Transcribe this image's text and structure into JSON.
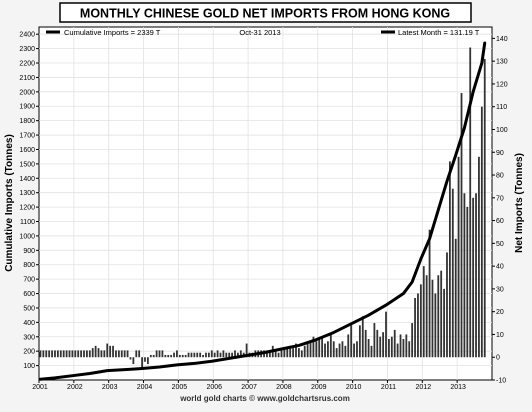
{
  "chart_data": {
    "type": "bar+line",
    "title": "MONTHLY CHINESE GOLD NET IMPORTS FROM HONG KONG",
    "date_label": "Oct-31  2013",
    "footer": "world gold charts © www.goldchartsrus.com",
    "left_axis": {
      "label": "Cumulative Imports (Tonnes)",
      "range": [
        0,
        2450
      ],
      "ticks": [
        "100",
        "200",
        "300",
        "400",
        "500",
        "600",
        "700",
        "800",
        "900",
        "1000",
        "1100",
        "1200",
        "1300",
        "1400",
        "1500",
        "1600",
        "1700",
        "1800",
        "1900",
        "2000",
        "2100",
        "2200",
        "2300",
        "2400"
      ]
    },
    "right_axis": {
      "label": "Net Imports (Tonnes)",
      "range": [
        -10,
        145
      ],
      "ticks": [
        "-10",
        "0",
        "10",
        "20",
        "30",
        "40",
        "50",
        "60",
        "70",
        "80",
        "90",
        "100",
        "110",
        "120",
        "130",
        "140"
      ]
    },
    "x_axis": {
      "ticks": [
        "2001",
        "2002",
        "2003",
        "2004",
        "2005",
        "2006",
        "2007",
        "2008",
        "2009",
        "2010",
        "2011",
        "2012",
        "2013"
      ],
      "start_year": 2001
    },
    "legend": [
      {
        "label": "Cumulative Imports = 2339 T",
        "position": "top-left"
      },
      {
        "label": "Latest Month = 131.19 T",
        "position": "top-right"
      }
    ],
    "grid": true,
    "colors": {
      "bars": "#333333",
      "line": "#000000",
      "grid": "#e2e2e2",
      "background": "#ffffff"
    },
    "series": [
      {
        "name": "Cumulative Imports",
        "axis": "left",
        "points": [
          [
            "2001-01",
            5
          ],
          [
            "2001-06",
            15
          ],
          [
            "2001-12",
            30
          ],
          [
            "2002-06",
            45
          ],
          [
            "2002-12",
            65
          ],
          [
            "2003-06",
            72
          ],
          [
            "2003-12",
            80
          ],
          [
            "2004-06",
            90
          ],
          [
            "2004-12",
            105
          ],
          [
            "2005-06",
            115
          ],
          [
            "2005-12",
            130
          ],
          [
            "2006-06",
            150
          ],
          [
            "2006-12",
            170
          ],
          [
            "2007-06",
            190
          ],
          [
            "2007-12",
            215
          ],
          [
            "2008-06",
            240
          ],
          [
            "2008-12",
            280
          ],
          [
            "2009-06",
            330
          ],
          [
            "2009-12",
            390
          ],
          [
            "2010-06",
            450
          ],
          [
            "2010-12",
            520
          ],
          [
            "2011-06",
            600
          ],
          [
            "2011-09",
            680
          ],
          [
            "2011-12",
            840
          ],
          [
            "2012-03",
            980
          ],
          [
            "2012-06",
            1180
          ],
          [
            "2012-09",
            1380
          ],
          [
            "2012-12",
            1560
          ],
          [
            "2013-03",
            1750
          ],
          [
            "2013-06",
            2000
          ],
          [
            "2013-09",
            2200
          ],
          [
            "2013-10",
            2339
          ]
        ]
      },
      {
        "name": "Net Imports",
        "axis": "right",
        "values": [
          3,
          3,
          3,
          3,
          3,
          3,
          3,
          3,
          3,
          3,
          3,
          3,
          3,
          3,
          3,
          3,
          3,
          3,
          4,
          5,
          4,
          3,
          3,
          6,
          5,
          5,
          3,
          3,
          3,
          3,
          3,
          -1,
          -3,
          3,
          3,
          -5,
          -2,
          -3,
          1,
          1,
          3,
          3,
          3,
          1,
          1,
          1,
          2,
          3,
          1,
          1,
          1,
          2,
          2,
          2,
          2,
          2,
          1,
          2,
          2,
          3,
          2,
          3,
          2,
          3,
          2,
          2,
          2,
          3,
          2,
          3,
          2,
          6,
          2,
          2,
          3,
          3,
          3,
          3,
          3,
          3,
          5,
          3,
          2,
          3,
          4,
          4,
          5,
          4,
          6,
          4,
          3,
          5,
          6,
          7,
          9,
          7,
          8,
          9,
          6,
          7,
          10,
          7,
          4,
          6,
          7,
          5,
          10,
          14,
          6,
          7,
          14,
          18,
          12,
          8,
          5,
          15,
          12,
          9,
          11,
          20,
          8,
          9,
          12,
          6,
          10,
          8,
          10,
          7,
          15,
          26,
          28,
          32,
          40,
          36,
          56,
          34,
          28,
          36,
          38,
          30,
          46,
          86,
          74,
          52,
          88,
          116,
          72,
          66,
          136,
          70,
          72,
          88,
          110,
          131
        ]
      }
    ]
  }
}
